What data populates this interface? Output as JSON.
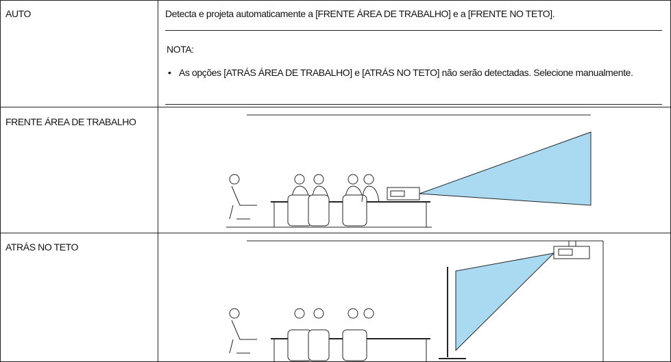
{
  "table": {
    "rows": [
      {
        "label": "AUTO",
        "text": "Detecta e projeta automaticamente a [FRENTE ÁREA DE TRABALHO] e a [FRENTE NO TETO].",
        "note": {
          "title": "NOTA:",
          "bullet": "As opções [ATRÁS ÁREA DE TRABALHO] e [ATRÁS NO TETO] não serão detectadas. Selecione manualmente."
        }
      },
      {
        "label": "FRENTE ÁREA DE TRABALHO"
      },
      {
        "label": "ATRÁS NO TETO"
      }
    ]
  }
}
